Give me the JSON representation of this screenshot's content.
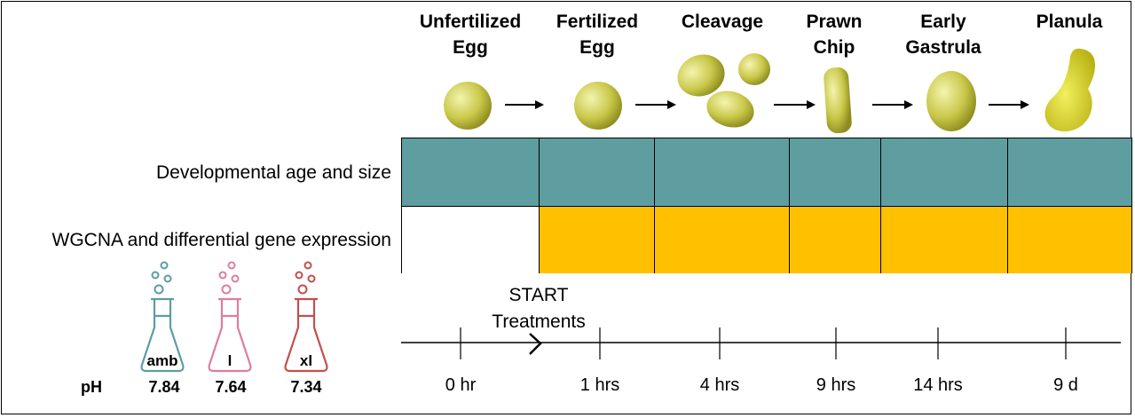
{
  "stages": [
    {
      "line1": "Unfertilized",
      "line2": "Egg"
    },
    {
      "line1": "Fertilized",
      "line2": "Egg"
    },
    {
      "line1": "Cleavage",
      "line2": ""
    },
    {
      "line1": "Prawn",
      "line2": "Chip"
    },
    {
      "line1": "Early",
      "line2": "Gastrula"
    },
    {
      "line1": "Planula",
      "line2": ""
    }
  ],
  "rows": [
    {
      "label": "Developmental age and size",
      "color": "#5f9ea0"
    },
    {
      "label": "WGCNA and differential gene expression",
      "color": "#ffc000"
    }
  ],
  "row2_white_first": true,
  "start": {
    "line1": "START",
    "line2": "Treatments"
  },
  "timeline": [
    "0 hr",
    "1 hrs",
    "4 hrs",
    "9 hrs",
    "14 hrs",
    "9 d"
  ],
  "treatments": [
    {
      "name": "amb",
      "ph": "7.84",
      "color": "#5b9ea0"
    },
    {
      "name": "l",
      "ph": "7.64",
      "color": "#e07ba0"
    },
    {
      "name": "xl",
      "ph": "7.34",
      "color": "#c0504d"
    }
  ],
  "ph_label": "pH",
  "embryo_color": "#c8c83c"
}
